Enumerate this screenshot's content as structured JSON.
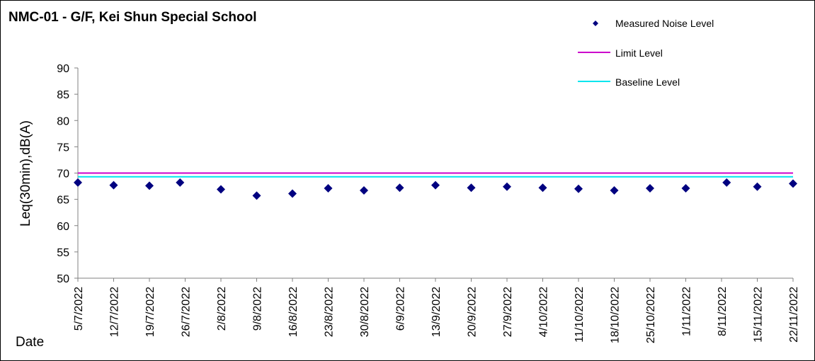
{
  "chart_data": {
    "type": "scatter",
    "title": "NMC-01 - G/F, Kei Shun Special School",
    "xlabel": "Date",
    "ylabel": "Leq(30min),dB(A)",
    "ylim": [
      50,
      90
    ],
    "yticks": [
      90,
      85,
      80,
      75,
      70,
      65,
      60,
      55,
      50
    ],
    "categories": [
      "5/7/2022",
      "12/7/2022",
      "19/7/2022",
      "26/7/2022",
      "2/8/2022",
      "9/8/2022",
      "16/8/2022",
      "23/8/2022",
      "30/8/2022",
      "6/9/2022",
      "13/9/2022",
      "20/9/2022",
      "27/9/2022",
      "4/10/2022",
      "11/10/2022",
      "18/10/2022",
      "25/10/2022",
      "1/11/2022",
      "8/11/2022",
      "15/11/2022",
      "22/11/2022"
    ],
    "start_date": "2022-07-05",
    "points": [
      {
        "date": "2022-07-05",
        "value": 68.2
      },
      {
        "date": "2022-07-12",
        "value": 67.7
      },
      {
        "date": "2022-07-19",
        "value": 67.6
      },
      {
        "date": "2022-07-25",
        "value": 68.2
      },
      {
        "date": "2022-08-02",
        "value": 66.9
      },
      {
        "date": "2022-08-09",
        "value": 65.7
      },
      {
        "date": "2022-08-16",
        "value": 66.1
      },
      {
        "date": "2022-08-23",
        "value": 67.1
      },
      {
        "date": "2022-08-30",
        "value": 66.7
      },
      {
        "date": "2022-09-06",
        "value": 67.2
      },
      {
        "date": "2022-09-13",
        "value": 67.7
      },
      {
        "date": "2022-09-20",
        "value": 67.2
      },
      {
        "date": "2022-09-27",
        "value": 67.4
      },
      {
        "date": "2022-10-04",
        "value": 67.2
      },
      {
        "date": "2022-10-11",
        "value": 67.0
      },
      {
        "date": "2022-10-18",
        "value": 66.7
      },
      {
        "date": "2022-10-25",
        "value": 67.1
      },
      {
        "date": "2022-11-01",
        "value": 67.1
      },
      {
        "date": "2022-11-09",
        "value": 68.2
      },
      {
        "date": "2022-11-15",
        "value": 67.4
      },
      {
        "date": "2022-11-22",
        "value": 68.0
      }
    ],
    "series": [
      {
        "name": "Measured Noise Level",
        "kind": "markers",
        "color": "#000080"
      },
      {
        "name": "Limit Level",
        "kind": "line",
        "value": 70,
        "color": "#cc00cc"
      },
      {
        "name": "Baseline Level",
        "kind": "line",
        "value": 69.3,
        "color": "#00e5ee"
      }
    ],
    "legend_position": "top-right",
    "grid": false
  }
}
